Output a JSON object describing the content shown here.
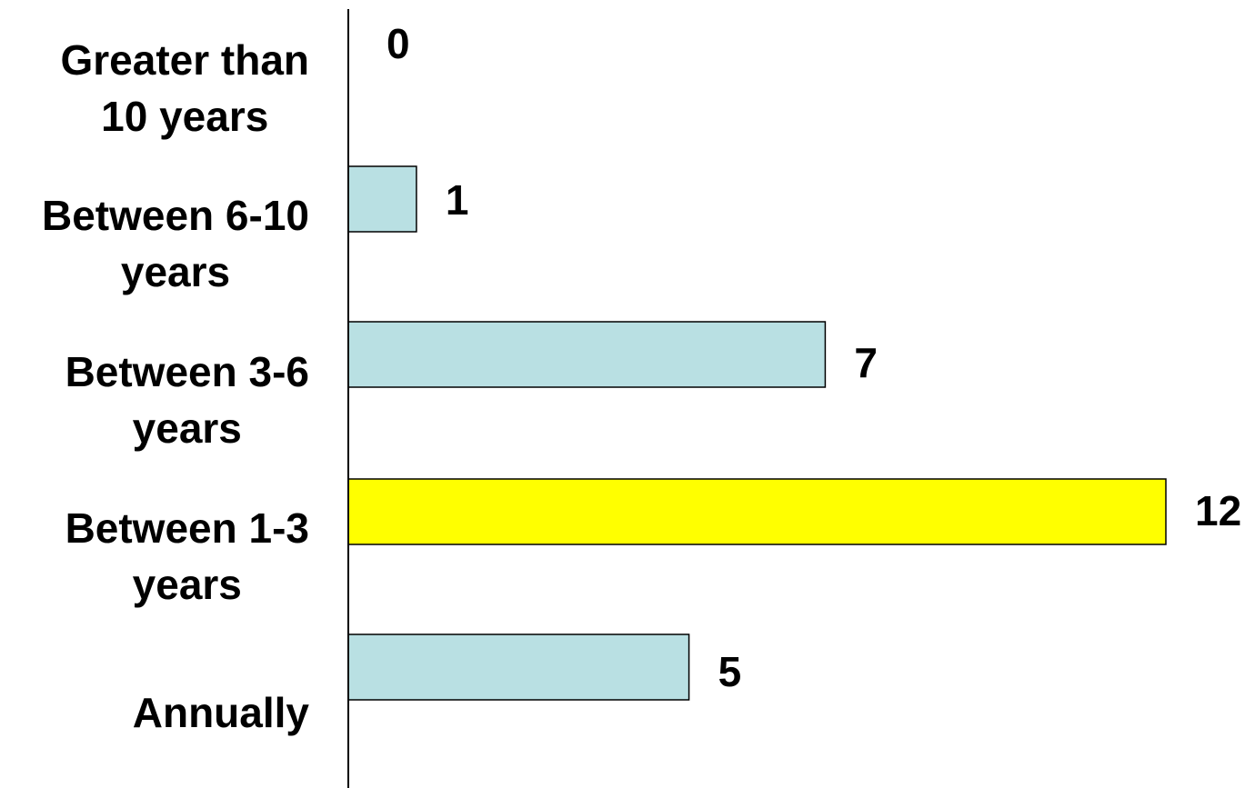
{
  "chart_data": {
    "type": "bar",
    "orientation": "horizontal",
    "categories": [
      [
        "Greater than",
        "10 years"
      ],
      [
        "Between 6-10",
        "years"
      ],
      [
        "Between 3-6",
        "years"
      ],
      [
        "Between 1-3",
        "years"
      ],
      [
        "Annually"
      ]
    ],
    "values": [
      0,
      1,
      7,
      12,
      5
    ],
    "highlight_index": 3,
    "colors": {
      "bar": "#b9e0e3",
      "highlight": "#ffff00",
      "outline": "#000000",
      "text": "#000000"
    },
    "xlim": [
      0,
      12
    ],
    "grid": false,
    "legend": "none",
    "title": "",
    "xlabel": "",
    "ylabel": ""
  }
}
